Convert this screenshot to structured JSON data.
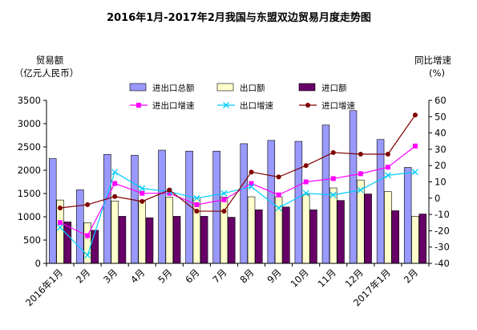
{
  "chart_data": {
    "type": "bar",
    "title": "2016年1月-2017年2月我国与东盟双边贸易月度走势图",
    "ylabel_left": [
      "贸易额",
      "（亿元人民币）"
    ],
    "ylabel_right": [
      "同比增速",
      "(%)"
    ],
    "categories": [
      "2016年1月",
      "2月",
      "3月",
      "4月",
      "5月",
      "6月",
      "7月",
      "8月",
      "9月",
      "10月",
      "11月",
      "12月",
      "2017年1月",
      "2月"
    ],
    "ylim_left": [
      0,
      3500
    ],
    "yticks_left": [
      0,
      500,
      1000,
      1500,
      2000,
      2500,
      3000,
      3500
    ],
    "ylim_right": [
      -40,
      60
    ],
    "yticks_right": [
      -40,
      -30,
      -20,
      -10,
      0,
      10,
      20,
      30,
      40,
      50,
      60
    ],
    "bar_series": [
      {
        "name": "进出口总额",
        "color": "#9999ff",
        "values": [
          2250,
          1580,
          2340,
          2320,
          2430,
          2410,
          2410,
          2570,
          2640,
          2620,
          2970,
          3280,
          2660,
          2060
        ]
      },
      {
        "name": "出口额",
        "color": "#ffffcc",
        "values": [
          1360,
          870,
          1340,
          1340,
          1420,
          1410,
          1420,
          1430,
          1430,
          1480,
          1620,
          1790,
          1540,
          1010
        ]
      },
      {
        "name": "进口额",
        "color": "#660066",
        "values": [
          890,
          710,
          1010,
          980,
          1010,
          1010,
          990,
          1150,
          1210,
          1150,
          1350,
          1490,
          1130,
          1060
        ]
      }
    ],
    "line_series": [
      {
        "name": "进出口增速",
        "color": "#ff00ff",
        "marker": "square",
        "values": [
          -15,
          -23,
          9,
          3,
          3,
          -4,
          -1,
          9,
          2,
          10,
          12,
          15,
          19,
          32
        ]
      },
      {
        "name": "出口增速",
        "color": "#00ccff",
        "marker": "x",
        "values": [
          -18,
          -35,
          16,
          6,
          4,
          0,
          3,
          7,
          -6,
          3,
          2,
          5,
          14,
          16
        ]
      },
      {
        "name": "进口增速",
        "color": "#800000",
        "marker": "circle",
        "values": [
          -6,
          -4,
          1,
          -2,
          5,
          -8,
          -8,
          16,
          13,
          20,
          28,
          27,
          27,
          51
        ]
      }
    ],
    "grid": false
  }
}
